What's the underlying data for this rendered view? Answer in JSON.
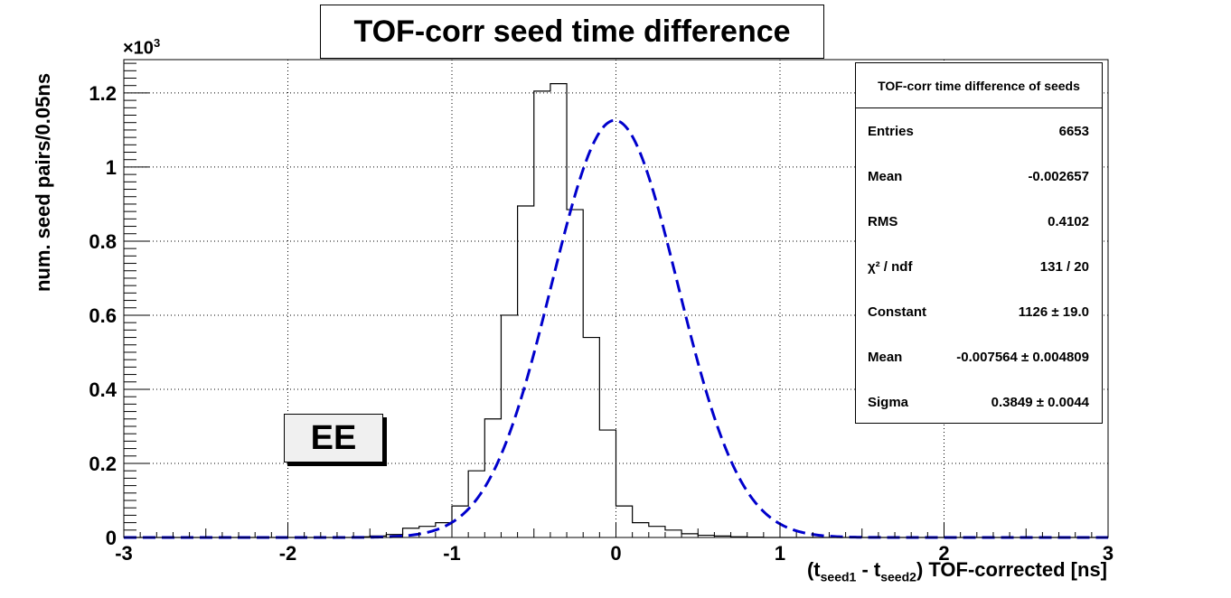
{
  "title": "TOF-corr seed time difference",
  "ylabel": "num. seed pairs/0.05ns",
  "y_multiplier": "×10",
  "y_multiplier_exp": "3",
  "xlabel_parts": [
    "(t",
    "seed1",
    " - t",
    "seed2",
    ") TOF-corrected   [ns]"
  ],
  "region_label": "EE",
  "stats_box": {
    "title": "TOF-corr time difference of seeds",
    "rows": [
      {
        "name": "Entries",
        "value": "6653"
      },
      {
        "name": "Mean",
        "value": "-0.002657"
      },
      {
        "name": "RMS",
        "value": "0.4102"
      },
      {
        "name": "χ² / ndf",
        "value": "131 / 20"
      },
      {
        "name": "Constant",
        "value": "1126 ± 19.0"
      },
      {
        "name": "Mean",
        "value": "-0.007564 ± 0.004809"
      },
      {
        "name": "Sigma",
        "value": "0.3849 ± 0.0044"
      }
    ]
  },
  "chart_data": {
    "type": "bar",
    "title": "TOF-corr seed time difference",
    "xlabel": "(tseed1 - tseed2) TOF-corrected   [ns]",
    "ylabel": "num. seed pairs/0.05ns",
    "xlim": [
      -3,
      3
    ],
    "ylim": [
      0,
      1.29
    ],
    "y_scale_note": "×10^3",
    "x_ticks": [
      -3,
      -2,
      -1,
      0,
      1,
      2,
      3
    ],
    "x_tick_labels": [
      "-3",
      "-2",
      "-1",
      "0",
      "1",
      "2",
      "3"
    ],
    "y_ticks": [
      0,
      0.2,
      0.4,
      0.6,
      0.8,
      1.0,
      1.2
    ],
    "y_tick_labels": [
      "0",
      "0.2",
      "0.4",
      "0.6",
      "0.8",
      "1",
      "1.2"
    ],
    "grid": true,
    "histogram": {
      "bin_edges": [
        -3.0,
        -2.9,
        -2.8,
        -2.7,
        -2.6,
        -2.5,
        -2.4,
        -2.3,
        -2.2,
        -2.1,
        -2.0,
        -1.9,
        -1.8,
        -1.7,
        -1.6,
        -1.5,
        -1.4,
        -1.3,
        -1.2,
        -1.1,
        -1.0,
        -0.9,
        -0.8,
        -0.7,
        -0.6,
        -0.5,
        -0.4,
        -0.3,
        -0.2,
        -0.1,
        0.0,
        0.1,
        0.2,
        0.3,
        0.4,
        0.5,
        0.6,
        0.7,
        0.8,
        0.9,
        1.0,
        1.1,
        1.2,
        1.3,
        1.4,
        1.5,
        1.6,
        1.7,
        1.8,
        1.9,
        2.0,
        2.1,
        2.2,
        2.3,
        2.4,
        2.5,
        2.6,
        2.7,
        2.8,
        2.9,
        3.0
      ],
      "counts": [
        0,
        0,
        0,
        0,
        0,
        0,
        0,
        0,
        0,
        0,
        0,
        0,
        0,
        0,
        0.002,
        0.004,
        0.008,
        0.025,
        0.03,
        0.04,
        0.085,
        0.18,
        0.32,
        0.6,
        0.895,
        1.205,
        1.225,
        0.885,
        0.54,
        0.29,
        0.085,
        0.04,
        0.03,
        0.02,
        0.01,
        0.006,
        0.004,
        0.002,
        0.001,
        0,
        0,
        0,
        0,
        0,
        0,
        0,
        0,
        0,
        0,
        0,
        0,
        0,
        0,
        0,
        0,
        0,
        0,
        0,
        0,
        0
      ],
      "color": "#000000"
    },
    "fit": {
      "name": "Gaussian fit",
      "function": "gaus",
      "constant": 1.126,
      "mean": -0.007564,
      "sigma": 0.3849,
      "color": "#0000cc",
      "style": "dashed"
    }
  }
}
